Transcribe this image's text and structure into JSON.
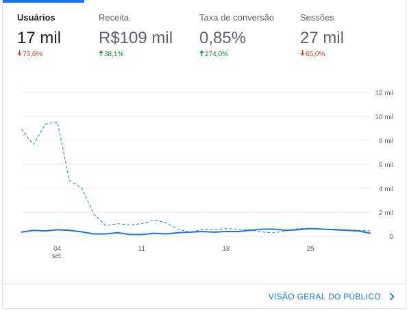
{
  "metrics": [
    {
      "label": "Usuários",
      "value": "17 mil",
      "delta": "73,6%",
      "trend": "down",
      "active": true
    },
    {
      "label": "Receita",
      "value": "R$109 mil",
      "delta": "38,1%",
      "trend": "up",
      "active": false
    },
    {
      "label": "Taxa de conversão",
      "value": "0,85%",
      "delta": "274,0%",
      "trend": "up",
      "active": false
    },
    {
      "label": "Sessões",
      "value": "27 mil",
      "delta": "65,0%",
      "trend": "down",
      "active": false
    }
  ],
  "footer": {
    "link_label": "VISÃO GERAL DO PÚBLICO"
  },
  "colors": {
    "accent": "#1a73e8",
    "down": "#d93025",
    "up": "#188038"
  },
  "icons": {
    "down": "arrow-down-icon",
    "up": "arrow-up-icon",
    "footer": "chevron-right-icon"
  },
  "chart_data": {
    "type": "line",
    "x": [
      1,
      2,
      3,
      4,
      5,
      6,
      7,
      8,
      9,
      10,
      11,
      12,
      13,
      14,
      15,
      16,
      17,
      18,
      19,
      20,
      21,
      22,
      23,
      24,
      25,
      26,
      27,
      28,
      29,
      30
    ],
    "x_ticks": [
      {
        "x": 4,
        "label": "04",
        "sublabel": "set."
      },
      {
        "x": 11,
        "label": "11"
      },
      {
        "x": 18,
        "label": "18"
      },
      {
        "x": 25,
        "label": "25"
      }
    ],
    "y_ticks": [
      "0",
      "2 mil",
      "4 mil",
      "6 mil",
      "8 mil",
      "10 mil",
      "12 mil"
    ],
    "ylim": [
      0,
      12000
    ],
    "series": [
      {
        "style": "solid",
        "values": [
          350,
          500,
          450,
          550,
          500,
          380,
          200,
          200,
          300,
          150,
          150,
          250,
          200,
          300,
          350,
          400,
          350,
          400,
          400,
          500,
          600,
          600,
          500,
          550,
          650,
          600,
          550,
          500,
          450,
          250
        ]
      },
      {
        "style": "dashed",
        "values": [
          8950,
          7650,
          9350,
          9550,
          4650,
          4050,
          1900,
          900,
          1050,
          950,
          1050,
          1350,
          1150,
          600,
          350,
          550,
          550,
          650,
          600,
          550,
          350,
          300,
          450,
          650,
          650,
          600,
          600,
          550,
          500,
          450
        ]
      }
    ],
    "grid": true,
    "legend": "none"
  }
}
